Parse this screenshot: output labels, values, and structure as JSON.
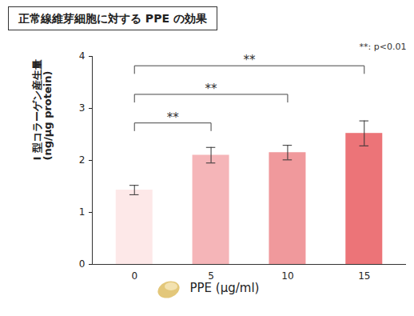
{
  "chart_data": {
    "type": "bar",
    "title": "正常線維芽細胞に対する PPE の効果",
    "x_label": "PPE (μg/ml)",
    "y_label": "I 型コラーゲン産生量\n(ng/μg protein)",
    "annotation": "**: p<0.01",
    "categories": [
      "0",
      "5",
      "10",
      "15"
    ],
    "values": [
      1.43,
      2.1,
      2.15,
      2.52
    ],
    "errors": [
      0.09,
      0.15,
      0.14,
      0.24
    ],
    "colors": [
      "#fde8e8",
      "#f5b5b8",
      "#f0999c",
      "#ec7478"
    ],
    "ylim": [
      0,
      4
    ],
    "yticks": [
      0,
      1,
      2,
      3,
      4
    ],
    "comparisons": [
      {
        "categories": [
          "0",
          "5"
        ],
        "label": "**"
      },
      {
        "categories": [
          "0",
          "10"
        ],
        "label": "**"
      },
      {
        "categories": [
          "0",
          "15"
        ],
        "label": "**"
      }
    ]
  }
}
